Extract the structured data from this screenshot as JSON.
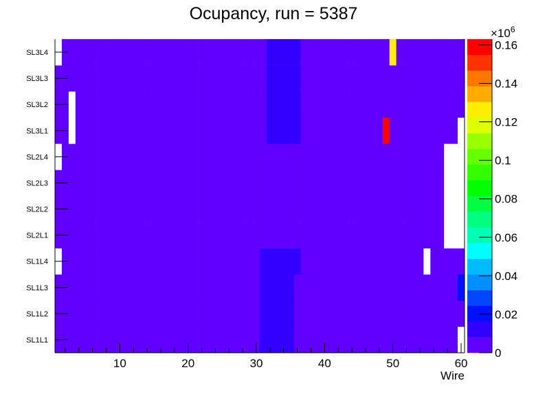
{
  "chart_data": {
    "type": "heatmap",
    "title": "Ocupancy, run = 5387",
    "xlabel": "Wire",
    "ylabel": "",
    "xlim": [
      0.5,
      60.5
    ],
    "nbins_x": 60,
    "x_ticks": [
      "10",
      "20",
      "30",
      "40",
      "50",
      "60"
    ],
    "x_tick_values": [
      10,
      20,
      30,
      40,
      50,
      60
    ],
    "y_categories": [
      "SL1L1",
      "SL1L2",
      "SL1L3",
      "SL1L4",
      "SL2L1",
      "SL2L2",
      "SL2L3",
      "SL2L4",
      "SL3L1",
      "SL3L2",
      "SL3L3",
      "SL3L4"
    ],
    "z_range": [
      0,
      163000
    ],
    "z_exponent_label": "×10",
    "z_exponent_power": "6",
    "z_ticks": [
      "0",
      "0.02",
      "0.04",
      "0.06",
      "0.08",
      "0.1",
      "0.12",
      "0.14",
      "0.16"
    ],
    "z_tick_values": [
      0,
      20000,
      40000,
      60000,
      80000,
      100000,
      120000,
      140000,
      160000
    ],
    "n_contours": 20,
    "palette": [
      "#6000ff",
      "#3300ff",
      "#0010ff",
      "#0045ff",
      "#0090ff",
      "#00bbff",
      "#00ffff",
      "#00ffb4",
      "#00ff80",
      "#00ff40",
      "#00ff00",
      "#33ff00",
      "#66ff00",
      "#99ff00",
      "#ddff00",
      "#ffee00",
      "#ffaa00",
      "#ff7700",
      "#ff3300",
      "#ff0000"
    ],
    "default_value": 4000,
    "overrides": [
      {
        "row": "SL3L4",
        "bins": [
          1,
          1
        ],
        "value": null
      },
      {
        "row": "SL2L4",
        "bins": [
          1,
          1
        ],
        "value": null
      },
      {
        "row": "SL1L4",
        "bins": [
          1,
          1
        ],
        "value": null
      },
      {
        "row": "SL3L2",
        "bins": [
          3,
          3
        ],
        "value": null
      },
      {
        "row": "SL3L1",
        "bins": [
          3,
          3
        ],
        "value": null
      },
      {
        "row": "SL3L4",
        "bins": [
          32,
          36
        ],
        "value": 12000
      },
      {
        "row": "SL3L3",
        "bins": [
          32,
          36
        ],
        "value": 12000
      },
      {
        "row": "SL3L2",
        "bins": [
          32,
          36
        ],
        "value": 12000
      },
      {
        "row": "SL3L1",
        "bins": [
          32,
          36
        ],
        "value": 12000
      },
      {
        "row": "SL1L4",
        "bins": [
          31,
          36
        ],
        "value": 12000
      },
      {
        "row": "SL1L3",
        "bins": [
          31,
          35
        ],
        "value": 12000
      },
      {
        "row": "SL1L2",
        "bins": [
          31,
          35
        ],
        "value": 12000
      },
      {
        "row": "SL1L1",
        "bins": [
          31,
          35
        ],
        "value": 12000
      },
      {
        "row": "SL3L4",
        "bins": [
          50,
          50
        ],
        "value": 126000
      },
      {
        "row": "SL3L1",
        "bins": [
          49,
          49
        ],
        "value": 160000
      },
      {
        "row": "SL3L1",
        "bins": [
          60,
          60
        ],
        "value": null
      },
      {
        "row": "SL2L4",
        "bins": [
          58,
          60
        ],
        "value": null
      },
      {
        "row": "SL2L3",
        "bins": [
          58,
          60
        ],
        "value": null
      },
      {
        "row": "SL2L2",
        "bins": [
          58,
          60
        ],
        "value": null
      },
      {
        "row": "SL2L1",
        "bins": [
          58,
          60
        ],
        "value": null
      },
      {
        "row": "SL1L4",
        "bins": [
          55,
          55
        ],
        "value": null
      },
      {
        "row": "SL1L3",
        "bins": [
          60,
          60
        ],
        "value": 20000
      },
      {
        "row": "SL1L1",
        "bins": [
          60,
          60
        ],
        "value": null
      }
    ]
  }
}
